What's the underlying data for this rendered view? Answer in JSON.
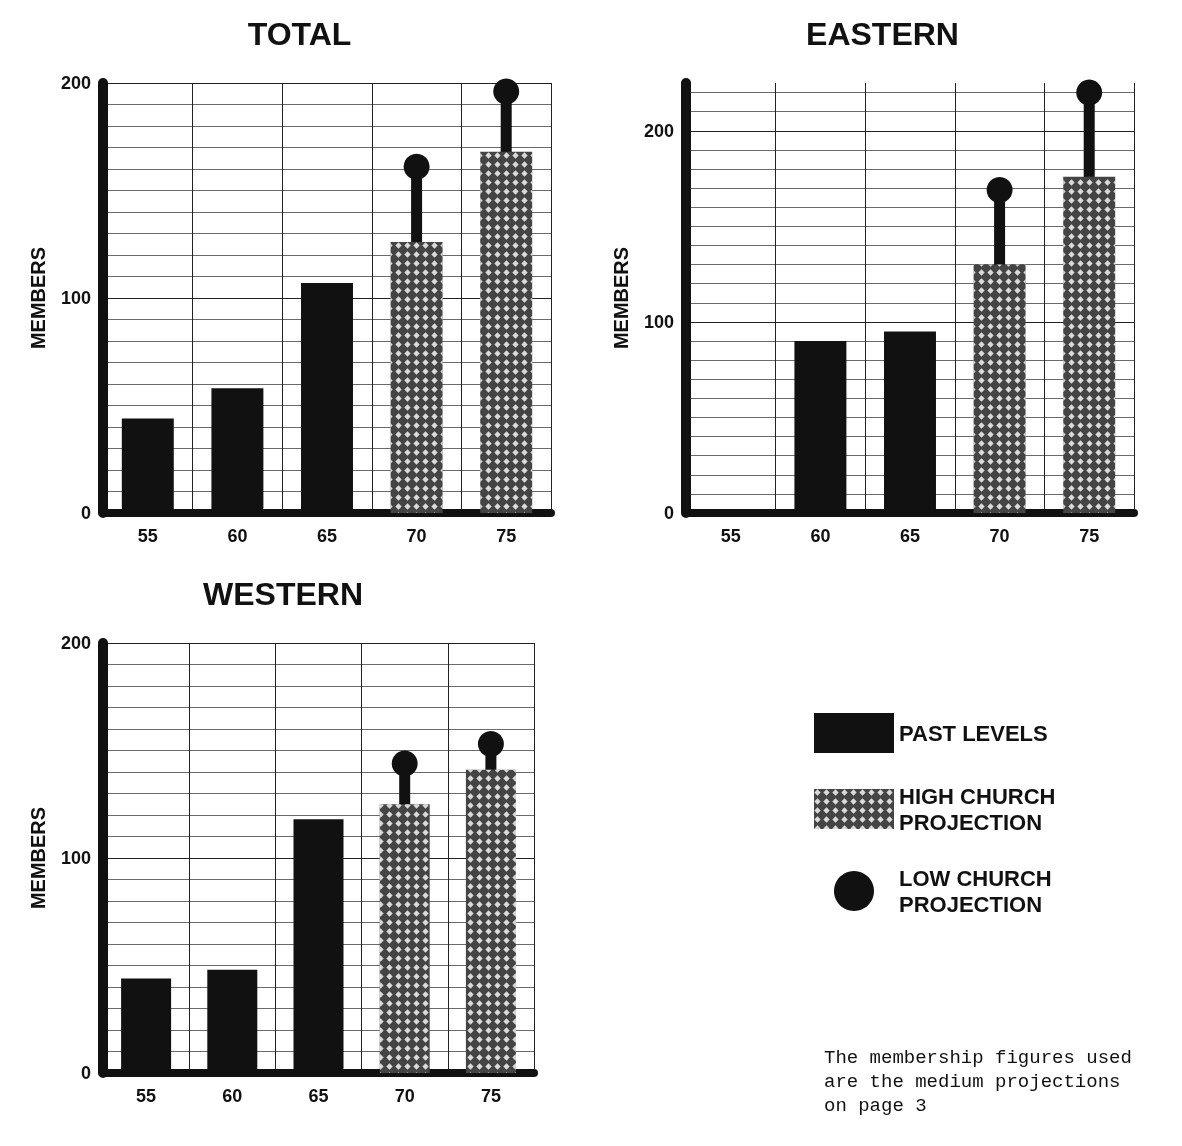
{
  "chart_data": [
    {
      "type": "bar",
      "title": "TOTAL",
      "ylabel": "MEMBERS",
      "categories": [
        "55",
        "60",
        "65",
        "70",
        "75"
      ],
      "ylim": [
        0,
        200
      ],
      "yticks": [
        0,
        100,
        200
      ],
      "grid": true,
      "marker": "circle",
      "series": [
        {
          "color": "#111111",
          "values": [
            44,
            58,
            107,
            null,
            null
          ]
        },
        {
          "color": "#444444",
          "values": [
            null,
            null,
            null,
            126,
            168
          ]
        },
        {
          "type": "lollipop",
          "color": "#111111",
          "values": [
            null,
            null,
            null,
            161,
            196
          ]
        }
      ]
    },
    {
      "type": "bar",
      "title": "EASTERN",
      "ylabel": "MEMBERS",
      "categories": [
        "55",
        "60",
        "65",
        "70",
        "75"
      ],
      "ylim": [
        0,
        225
      ],
      "yticks": [
        0,
        100,
        200
      ],
      "grid": true,
      "marker": "circle",
      "series": [
        {
          "color": "#111111",
          "values": [
            null,
            90,
            95,
            null,
            null
          ]
        },
        {
          "color": "#444444",
          "values": [
            null,
            null,
            null,
            130,
            176
          ]
        },
        {
          "type": "lollipop",
          "color": "#111111",
          "values": [
            null,
            null,
            null,
            169,
            220
          ]
        }
      ]
    },
    {
      "type": "bar",
      "title": "WESTERN",
      "ylabel": "MEMBERS",
      "categories": [
        "55",
        "60",
        "65",
        "70",
        "75"
      ],
      "ylim": [
        0,
        200
      ],
      "yticks": [
        0,
        100,
        200
      ],
      "grid": true,
      "marker": "circle",
      "legend": "right",
      "annotations": [
        "The membership figures used are the medium projections on page 3"
      ],
      "series": [
        {
          "name": "PAST LEVELS",
          "color": "#111111",
          "values": [
            44,
            48,
            118,
            null,
            null
          ]
        },
        {
          "name": "HIGH CHURCH PROJECTION",
          "color": "#444444",
          "values": [
            null,
            null,
            null,
            125,
            141
          ]
        },
        {
          "type": "lollipop",
          "name": "LOW CHURCH PROJECTION",
          "color": "#111111",
          "values": [
            null,
            null,
            null,
            144,
            153
          ]
        }
      ]
    }
  ]
}
